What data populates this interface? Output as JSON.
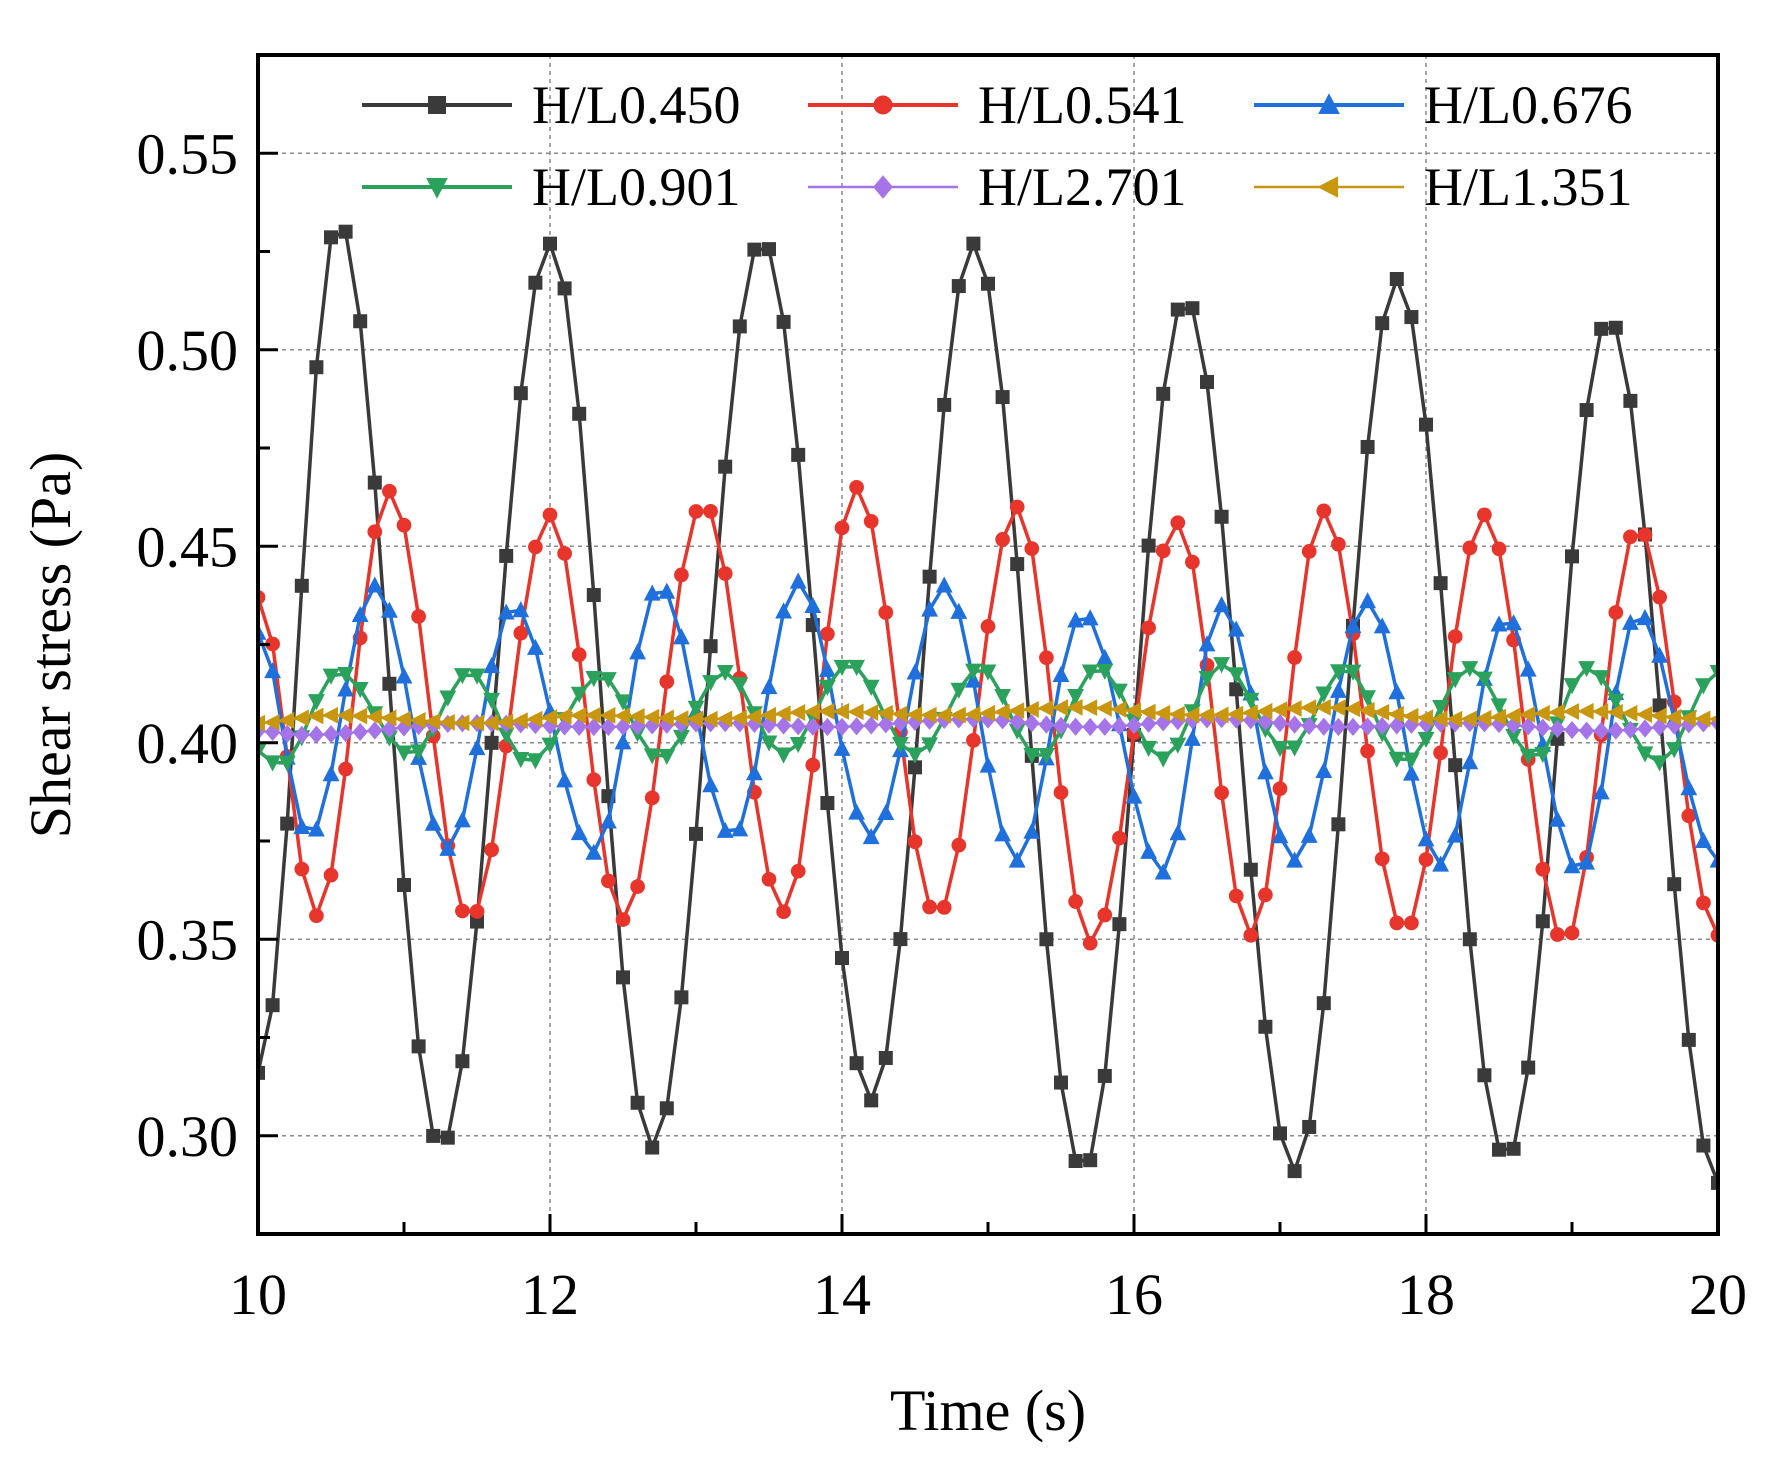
{
  "chart_data": {
    "type": "line",
    "title": "",
    "xlabel": "Time (s)",
    "ylabel": "Shear stress (Pa)",
    "xlim": [
      10,
      20
    ],
    "ylim": [
      0.275,
      0.575
    ],
    "xticks": [
      10,
      12,
      14,
      16,
      18,
      20
    ],
    "xtick_labels": [
      "10",
      "12",
      "14",
      "16",
      "18",
      "20"
    ],
    "yticks": [
      0.3,
      0.35,
      0.4,
      0.45,
      0.5,
      0.55
    ],
    "ytick_labels": [
      "0.30",
      "0.35",
      "0.40",
      "0.45",
      "0.50",
      "0.55"
    ],
    "grid": true,
    "legend_position": "top",
    "series": [
      {
        "name": "H/L0.450",
        "color": "#3a3a3a",
        "marker": "square",
        "x_start": 10,
        "x_step": 0.1,
        "peaks": [
          [
            10.55,
            0.533
          ],
          [
            12.0,
            0.527
          ],
          [
            13.45,
            0.528
          ],
          [
            14.9,
            0.527
          ],
          [
            16.35,
            0.513
          ],
          [
            17.8,
            0.518
          ],
          [
            19.25,
            0.508
          ]
        ],
        "troughs": [
          [
            11.25,
            0.297
          ],
          [
            12.7,
            0.297
          ],
          [
            14.2,
            0.309
          ],
          [
            15.65,
            0.291
          ],
          [
            17.1,
            0.291
          ],
          [
            18.55,
            0.294
          ],
          [
            20.0,
            0.288
          ]
        ],
        "start_value": 0.316
      },
      {
        "name": "H/L0.541",
        "color": "#e8352b",
        "marker": "circle",
        "x_start": 10,
        "x_step": 0.1,
        "peaks": [
          [
            10.9,
            0.464
          ],
          [
            12.0,
            0.458
          ],
          [
            13.05,
            0.461
          ],
          [
            14.1,
            0.465
          ],
          [
            15.2,
            0.46
          ],
          [
            16.3,
            0.456
          ],
          [
            17.3,
            0.459
          ],
          [
            18.4,
            0.458
          ],
          [
            19.45,
            0.455
          ]
        ],
        "troughs": [
          [
            10.4,
            0.356
          ],
          [
            11.45,
            0.355
          ],
          [
            12.5,
            0.355
          ],
          [
            13.6,
            0.357
          ],
          [
            14.65,
            0.356
          ],
          [
            15.7,
            0.349
          ],
          [
            16.8,
            0.351
          ],
          [
            17.85,
            0.352
          ],
          [
            18.95,
            0.349
          ]
        ],
        "start_value": 0.437,
        "end_value": 0.351
      },
      {
        "name": "H/L0.676",
        "color": "#1f6fdc",
        "marker": "triangle-up",
        "x_start": 10,
        "x_step": 0.1,
        "peaks": [
          [
            10.8,
            0.44
          ],
          [
            11.75,
            0.435
          ],
          [
            12.75,
            0.44
          ],
          [
            13.7,
            0.441
          ],
          [
            14.7,
            0.44
          ],
          [
            15.65,
            0.433
          ],
          [
            16.6,
            0.435
          ],
          [
            17.6,
            0.436
          ],
          [
            18.55,
            0.432
          ],
          [
            19.45,
            0.433
          ]
        ],
        "troughs": [
          [
            10.35,
            0.376
          ],
          [
            11.3,
            0.373
          ],
          [
            12.3,
            0.372
          ],
          [
            13.25,
            0.376
          ],
          [
            14.2,
            0.376
          ],
          [
            15.2,
            0.37
          ],
          [
            16.2,
            0.367
          ],
          [
            17.1,
            0.37
          ],
          [
            18.1,
            0.369
          ],
          [
            19.05,
            0.367
          ]
        ],
        "start_value": 0.428,
        "end_value": 0.37
      },
      {
        "name": "H/L0.901",
        "color": "#2aa25c",
        "marker": "triangle-down",
        "x_start": 10,
        "x_step": 0.1,
        "peaks": [
          [
            10.55,
            0.418
          ],
          [
            11.45,
            0.418
          ],
          [
            12.35,
            0.417
          ],
          [
            13.2,
            0.418
          ],
          [
            14.05,
            0.42
          ],
          [
            14.95,
            0.419
          ],
          [
            15.75,
            0.419
          ],
          [
            16.6,
            0.42
          ],
          [
            17.45,
            0.419
          ],
          [
            18.3,
            0.419
          ],
          [
            19.1,
            0.419
          ],
          [
            20.0,
            0.418
          ]
        ],
        "troughs": [
          [
            10.15,
            0.394
          ],
          [
            11.05,
            0.397
          ],
          [
            11.85,
            0.395
          ],
          [
            12.75,
            0.396
          ],
          [
            13.6,
            0.397
          ],
          [
            14.5,
            0.397
          ],
          [
            15.35,
            0.396
          ],
          [
            16.2,
            0.396
          ],
          [
            17.05,
            0.398
          ],
          [
            17.85,
            0.395
          ],
          [
            18.75,
            0.396
          ],
          [
            19.6,
            0.395
          ]
        ],
        "start_value": 0.398
      },
      {
        "name": "H/L2.701",
        "color": "#a474e8",
        "marker": "diamond",
        "x_start": 10,
        "x_step": 0.1,
        "peaks": [
          [
            11.5,
            0.405
          ],
          [
            13.2,
            0.405
          ],
          [
            14.9,
            0.406
          ],
          [
            16.6,
            0.406
          ],
          [
            18.3,
            0.405
          ],
          [
            20.0,
            0.405
          ]
        ],
        "troughs": [
          [
            10.3,
            0.402
          ],
          [
            12.3,
            0.404
          ],
          [
            13.9,
            0.404
          ],
          [
            15.7,
            0.404
          ],
          [
            17.4,
            0.404
          ],
          [
            19.2,
            0.403
          ]
        ],
        "start_value": 0.403
      },
      {
        "name": "H/L1.351",
        "color": "#c8960f",
        "marker": "triangle-left",
        "x_start": 10,
        "x_step": 0.1,
        "peaks": [
          [
            10.5,
            0.407
          ],
          [
            12.3,
            0.407
          ],
          [
            13.9,
            0.408
          ],
          [
            15.6,
            0.409
          ],
          [
            17.3,
            0.409
          ],
          [
            19.1,
            0.408
          ]
        ],
        "troughs": [
          [
            11.5,
            0.405
          ],
          [
            13.1,
            0.406
          ],
          [
            14.7,
            0.407
          ],
          [
            16.5,
            0.407
          ],
          [
            18.2,
            0.406
          ],
          [
            20.0,
            0.406
          ]
        ],
        "start_value": 0.405
      }
    ]
  }
}
